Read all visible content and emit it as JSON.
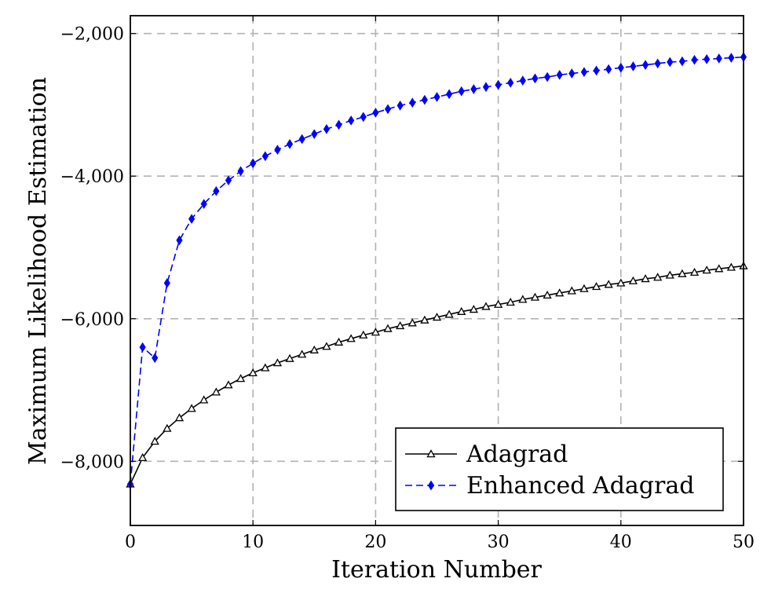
{
  "chart_data": {
    "type": "line",
    "xlabel": "Iteration Number",
    "ylabel": "Maximum Likelihood Estimation",
    "xlim": [
      0,
      50
    ],
    "ylim": [
      -8900,
      -1750
    ],
    "xticks": [
      0,
      10,
      20,
      30,
      40,
      50
    ],
    "xtick_labels": [
      "0",
      "10",
      "20",
      "30",
      "40",
      "50"
    ],
    "yticks": [
      -8000,
      -6000,
      -4000,
      -2000
    ],
    "ytick_labels": [
      "−8,000",
      "−6,000",
      "−4,000",
      "−2,000"
    ],
    "grid": true,
    "legend_position": "bottom-right",
    "x": [
      0,
      1,
      2,
      3,
      4,
      5,
      6,
      7,
      8,
      9,
      10,
      11,
      12,
      13,
      14,
      15,
      16,
      17,
      18,
      19,
      20,
      21,
      22,
      23,
      24,
      25,
      26,
      27,
      28,
      29,
      30,
      31,
      32,
      33,
      34,
      35,
      36,
      37,
      38,
      39,
      40,
      41,
      42,
      43,
      44,
      45,
      46,
      47,
      48,
      49,
      50
    ],
    "series": [
      {
        "name": "Adagrad",
        "color": "#000000",
        "line_style": "solid",
        "marker": "triangle",
        "values": [
          -8320,
          -7950,
          -7720,
          -7540,
          -7390,
          -7260,
          -7140,
          -7030,
          -6930,
          -6840,
          -6760,
          -6690,
          -6620,
          -6560,
          -6500,
          -6440,
          -6390,
          -6330,
          -6280,
          -6230,
          -6190,
          -6140,
          -6100,
          -6060,
          -6020,
          -5980,
          -5940,
          -5900,
          -5870,
          -5830,
          -5800,
          -5770,
          -5730,
          -5700,
          -5670,
          -5640,
          -5610,
          -5580,
          -5550,
          -5520,
          -5500,
          -5470,
          -5440,
          -5420,
          -5390,
          -5370,
          -5350,
          -5320,
          -5300,
          -5280,
          -5260
        ]
      },
      {
        "name": "Enhanced Adagrad",
        "color": "#0000ff",
        "line_style": "dashed",
        "marker": "diamond",
        "values": [
          -8320,
          -6400,
          -6550,
          -5500,
          -4900,
          -4600,
          -4390,
          -4210,
          -4060,
          -3930,
          -3820,
          -3720,
          -3630,
          -3550,
          -3480,
          -3410,
          -3340,
          -3280,
          -3220,
          -3170,
          -3110,
          -3060,
          -3010,
          -2970,
          -2930,
          -2890,
          -2850,
          -2810,
          -2780,
          -2750,
          -2720,
          -2690,
          -2660,
          -2630,
          -2610,
          -2580,
          -2560,
          -2540,
          -2520,
          -2500,
          -2480,
          -2460,
          -2440,
          -2420,
          -2400,
          -2390,
          -2370,
          -2360,
          -2350,
          -2340,
          -2330
        ]
      }
    ]
  }
}
